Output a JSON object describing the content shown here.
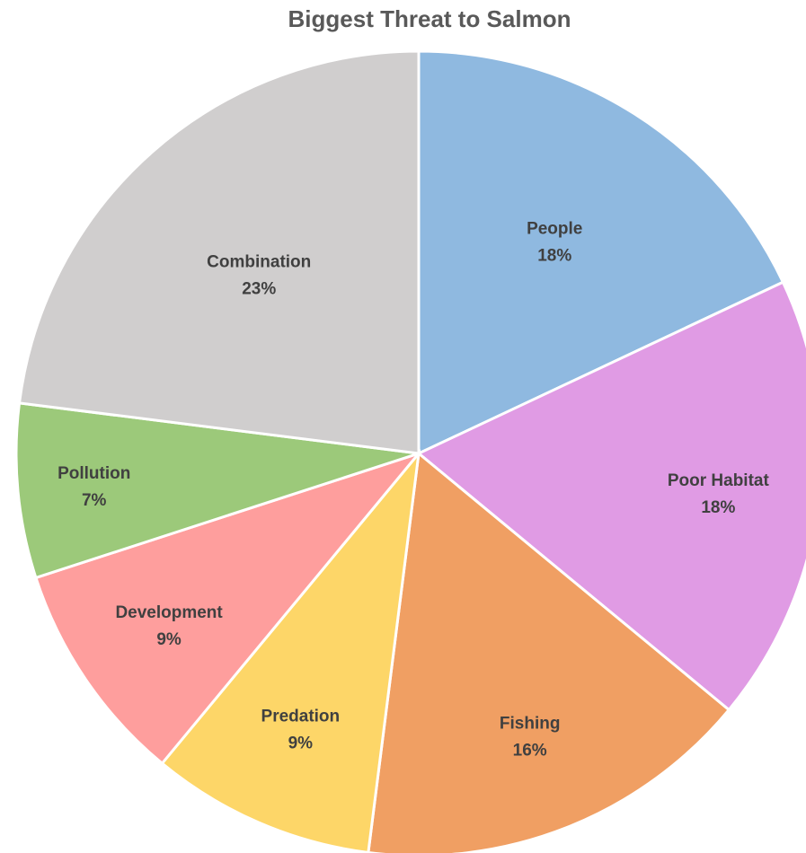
{
  "chart_data": {
    "type": "pie",
    "title": "Biggest Threat to Salmon",
    "slices": [
      {
        "label": "People",
        "value": 18,
        "display": "18%",
        "color": "#8FB9E0"
      },
      {
        "label": "Poor Habitat",
        "value": 18,
        "display": "18%",
        "color": "#E09BE4"
      },
      {
        "label": "Fishing",
        "value": 16,
        "display": "16%",
        "color": "#F09F63"
      },
      {
        "label": "Predation",
        "value": 9,
        "display": "9%",
        "color": "#FDD668"
      },
      {
        "label": "Development",
        "value": 9,
        "display": "9%",
        "color": "#FE9E9D"
      },
      {
        "label": "Pollution",
        "value": 7,
        "display": "7%",
        "color": "#9CC97A"
      },
      {
        "label": "Combination",
        "value": 23,
        "display": "23%",
        "color": "#D0CECE"
      }
    ],
    "start_angle_deg": 0,
    "direction": "clockwise",
    "legend": "none",
    "data_labels": "inside"
  }
}
